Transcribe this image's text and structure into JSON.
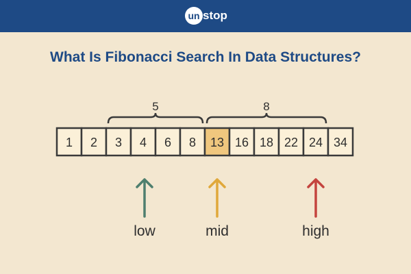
{
  "header": {
    "logo_text": "unstop",
    "logo_circle": "un",
    "logo_rest": "stop",
    "color": "#1e4a85"
  },
  "title": "What Is Fibonacci Search In Data Structures?",
  "array": {
    "values": [
      "1",
      "2",
      "3",
      "4",
      "6",
      "8",
      "13",
      "16",
      "18",
      "22",
      "24",
      "34"
    ],
    "highlight_index": 6,
    "highlight_color": "#f0c77e",
    "cell_color": "#fbf0d8"
  },
  "brackets": [
    {
      "label": "5",
      "from_index": 2,
      "to_index": 5
    },
    {
      "label": "8",
      "from_index": 6,
      "to_index": 10
    }
  ],
  "pointers": [
    {
      "label": "low",
      "index": 3,
      "color": "#4e7f6e"
    },
    {
      "label": "mid",
      "index": 6,
      "color": "#e0a83a"
    },
    {
      "label": "high",
      "index": 10,
      "color": "#c4443e"
    }
  ]
}
